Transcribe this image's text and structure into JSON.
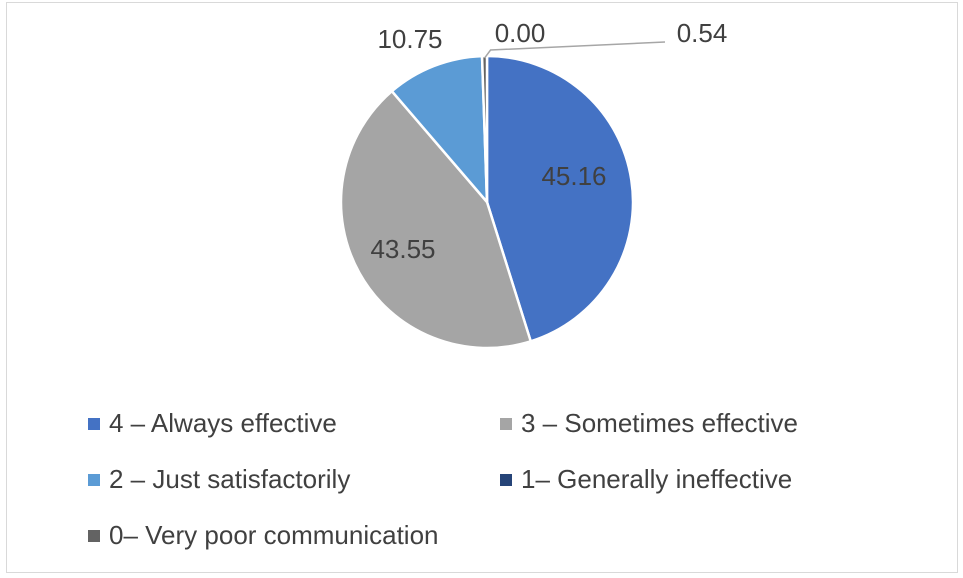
{
  "chart_data": {
    "type": "pie",
    "categories": [
      "4 – Always effective",
      "3 – Sometimes effective",
      "2 – Just satisfactorily",
      "1– Generally ineffective",
      "0– Very poor communication"
    ],
    "values": [
      45.16,
      43.55,
      10.75,
      0.0,
      0.54
    ],
    "data_labels": [
      "45.16",
      "43.55",
      "10.75",
      "0.00",
      "0.54"
    ],
    "colors": [
      "#4472c4",
      "#a5a5a5",
      "#5b9bd5",
      "#264478",
      "#636363"
    ],
    "title": "",
    "legend_position": "bottom",
    "start_angle_deg": 0,
    "direction": "clockwise"
  }
}
